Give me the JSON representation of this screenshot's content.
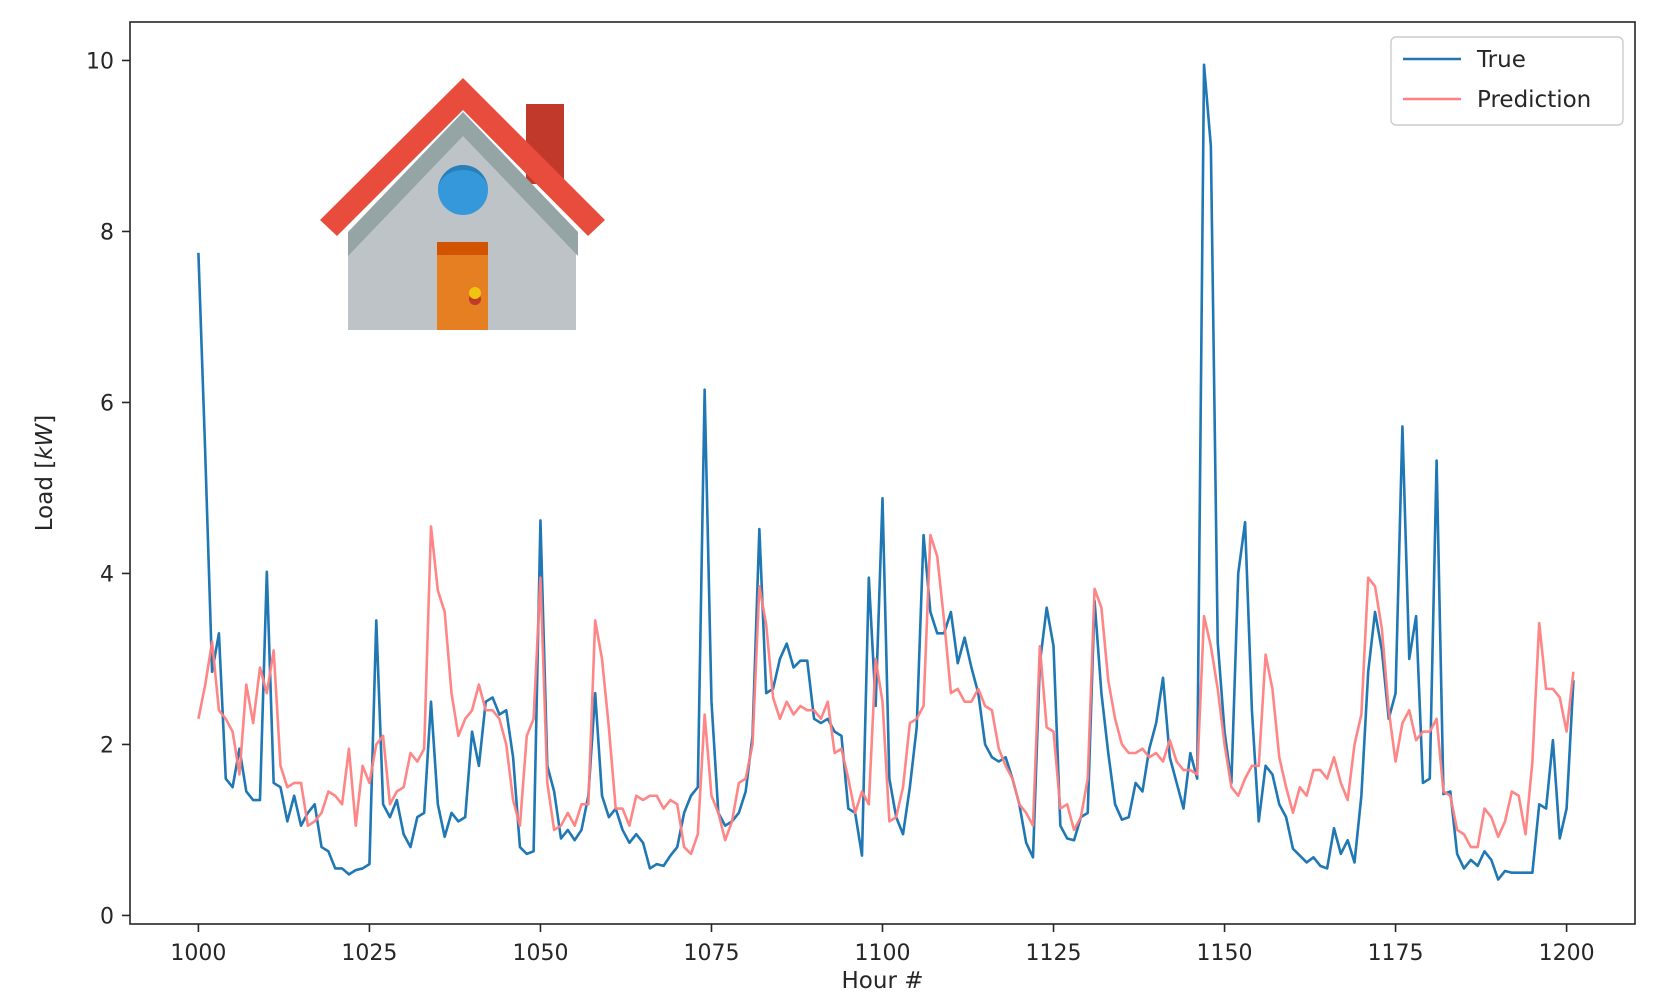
{
  "chart_data": {
    "type": "line",
    "title": "",
    "xlabel": "Hour #",
    "ylabel": "Load [kW]",
    "ylabel_plain": "Load [",
    "ylabel_italic": "kW",
    "ylabel_close": "]",
    "xlim": [
      990,
      1210
    ],
    "ylim": [
      -0.1,
      10.45
    ],
    "xticks": [
      1000,
      1025,
      1050,
      1075,
      1100,
      1125,
      1150,
      1175,
      1200
    ],
    "yticks": [
      0,
      2,
      4,
      6,
      8,
      10
    ],
    "legend_position": "top-right",
    "grid": false,
    "x_start": 1000,
    "x_step": 1,
    "series": [
      {
        "name": "True",
        "color": "#1f77b4",
        "values": [
          7.75,
          5.4,
          2.85,
          3.3,
          1.6,
          1.5,
          1.95,
          1.45,
          1.35,
          1.35,
          4.02,
          1.55,
          1.5,
          1.1,
          1.4,
          1.05,
          1.2,
          1.3,
          0.8,
          0.75,
          0.55,
          0.55,
          0.48,
          0.53,
          0.55,
          0.6,
          3.45,
          1.3,
          1.15,
          1.35,
          0.95,
          0.8,
          1.15,
          1.2,
          2.5,
          1.3,
          0.92,
          1.2,
          1.1,
          1.15,
          2.15,
          1.75,
          2.5,
          2.55,
          2.35,
          2.4,
          1.85,
          0.8,
          0.72,
          0.75,
          4.62,
          1.75,
          1.45,
          0.9,
          1.0,
          0.88,
          1.0,
          1.4,
          2.6,
          1.4,
          1.15,
          1.25,
          1.0,
          0.85,
          0.95,
          0.85,
          0.55,
          0.6,
          0.58,
          0.7,
          0.8,
          1.2,
          1.4,
          1.5,
          6.15,
          2.5,
          1.2,
          1.05,
          1.1,
          1.2,
          1.45,
          2.1,
          4.52,
          2.6,
          2.65,
          3.0,
          3.18,
          2.9,
          2.98,
          2.98,
          2.3,
          2.25,
          2.3,
          2.15,
          2.1,
          1.25,
          1.2,
          0.7,
          3.95,
          2.45,
          4.88,
          1.6,
          1.15,
          0.95,
          1.5,
          2.2,
          4.45,
          3.55,
          3.3,
          3.3,
          3.55,
          2.95,
          3.25,
          2.9,
          2.6,
          2.0,
          1.85,
          1.8,
          1.85,
          1.6,
          1.3,
          0.85,
          0.68,
          2.95,
          3.6,
          3.15,
          1.05,
          0.9,
          0.88,
          1.15,
          1.2,
          3.68,
          2.6,
          1.9,
          1.3,
          1.12,
          1.15,
          1.55,
          1.45,
          1.95,
          2.25,
          2.78,
          1.85,
          1.55,
          1.25,
          1.9,
          1.6,
          9.95,
          9.0,
          3.2,
          2.15,
          1.55,
          4.0,
          4.6,
          2.4,
          1.1,
          1.75,
          1.65,
          1.3,
          1.15,
          0.78,
          0.7,
          0.62,
          0.68,
          0.58,
          0.55,
          1.02,
          0.72,
          0.88,
          0.62,
          1.4,
          2.85,
          3.55,
          3.1,
          2.3,
          2.6,
          5.72,
          3.0,
          3.5,
          1.55,
          1.6,
          5.32,
          1.42,
          1.45,
          0.72,
          0.55,
          0.65,
          0.58,
          0.75,
          0.65,
          0.42,
          0.52,
          0.5,
          0.5,
          0.5,
          0.5,
          1.3,
          1.25,
          2.05,
          0.9,
          1.25,
          2.75
        ]
      },
      {
        "name": "Prediction",
        "color": "#ff8080",
        "values": [
          2.3,
          2.7,
          3.2,
          2.4,
          2.3,
          2.15,
          1.65,
          2.7,
          2.25,
          2.9,
          2.6,
          3.1,
          1.75,
          1.5,
          1.55,
          1.55,
          1.05,
          1.1,
          1.2,
          1.45,
          1.4,
          1.3,
          1.95,
          1.05,
          1.75,
          1.55,
          2.0,
          2.1,
          1.3,
          1.45,
          1.5,
          1.9,
          1.8,
          1.95,
          4.55,
          3.8,
          3.55,
          2.6,
          2.1,
          2.3,
          2.4,
          2.7,
          2.4,
          2.4,
          2.3,
          2.0,
          1.35,
          1.05,
          2.1,
          2.3,
          3.95,
          1.55,
          1.0,
          1.05,
          1.2,
          1.05,
          1.3,
          1.3,
          3.45,
          3.0,
          2.2,
          1.25,
          1.25,
          1.05,
          1.4,
          1.35,
          1.4,
          1.4,
          1.25,
          1.35,
          1.3,
          0.8,
          0.72,
          0.95,
          2.35,
          1.4,
          1.2,
          0.88,
          1.1,
          1.55,
          1.6,
          2.0,
          3.85,
          3.4,
          2.55,
          2.3,
          2.5,
          2.35,
          2.45,
          2.4,
          2.4,
          2.3,
          2.5,
          1.9,
          1.95,
          1.6,
          1.2,
          1.45,
          1.3,
          3.0,
          2.5,
          1.1,
          1.15,
          1.5,
          2.25,
          2.3,
          2.45,
          4.45,
          4.2,
          3.45,
          2.6,
          2.65,
          2.5,
          2.5,
          2.65,
          2.45,
          2.4,
          1.95,
          1.75,
          1.6,
          1.3,
          1.2,
          1.05,
          3.15,
          2.2,
          2.15,
          1.25,
          1.3,
          1.0,
          1.15,
          1.6,
          3.82,
          3.6,
          2.75,
          2.3,
          2.0,
          1.9,
          1.9,
          1.95,
          1.85,
          1.9,
          1.8,
          2.05,
          1.8,
          1.7,
          1.7,
          1.65,
          3.5,
          3.15,
          2.65,
          2.0,
          1.5,
          1.4,
          1.6,
          1.75,
          1.75,
          3.05,
          2.65,
          1.85,
          1.5,
          1.2,
          1.5,
          1.4,
          1.7,
          1.7,
          1.6,
          1.85,
          1.55,
          1.35,
          2.0,
          2.35,
          3.95,
          3.85,
          3.35,
          2.4,
          1.8,
          2.25,
          2.4,
          2.05,
          2.15,
          2.15,
          2.3,
          1.45,
          1.4,
          1.0,
          0.95,
          0.8,
          0.8,
          1.25,
          1.15,
          0.92,
          1.1,
          1.45,
          1.4,
          0.95,
          1.8,
          3.42,
          2.65,
          2.65,
          2.55,
          2.15,
          2.85
        ]
      }
    ]
  },
  "icon": {
    "name": "house-icon"
  }
}
